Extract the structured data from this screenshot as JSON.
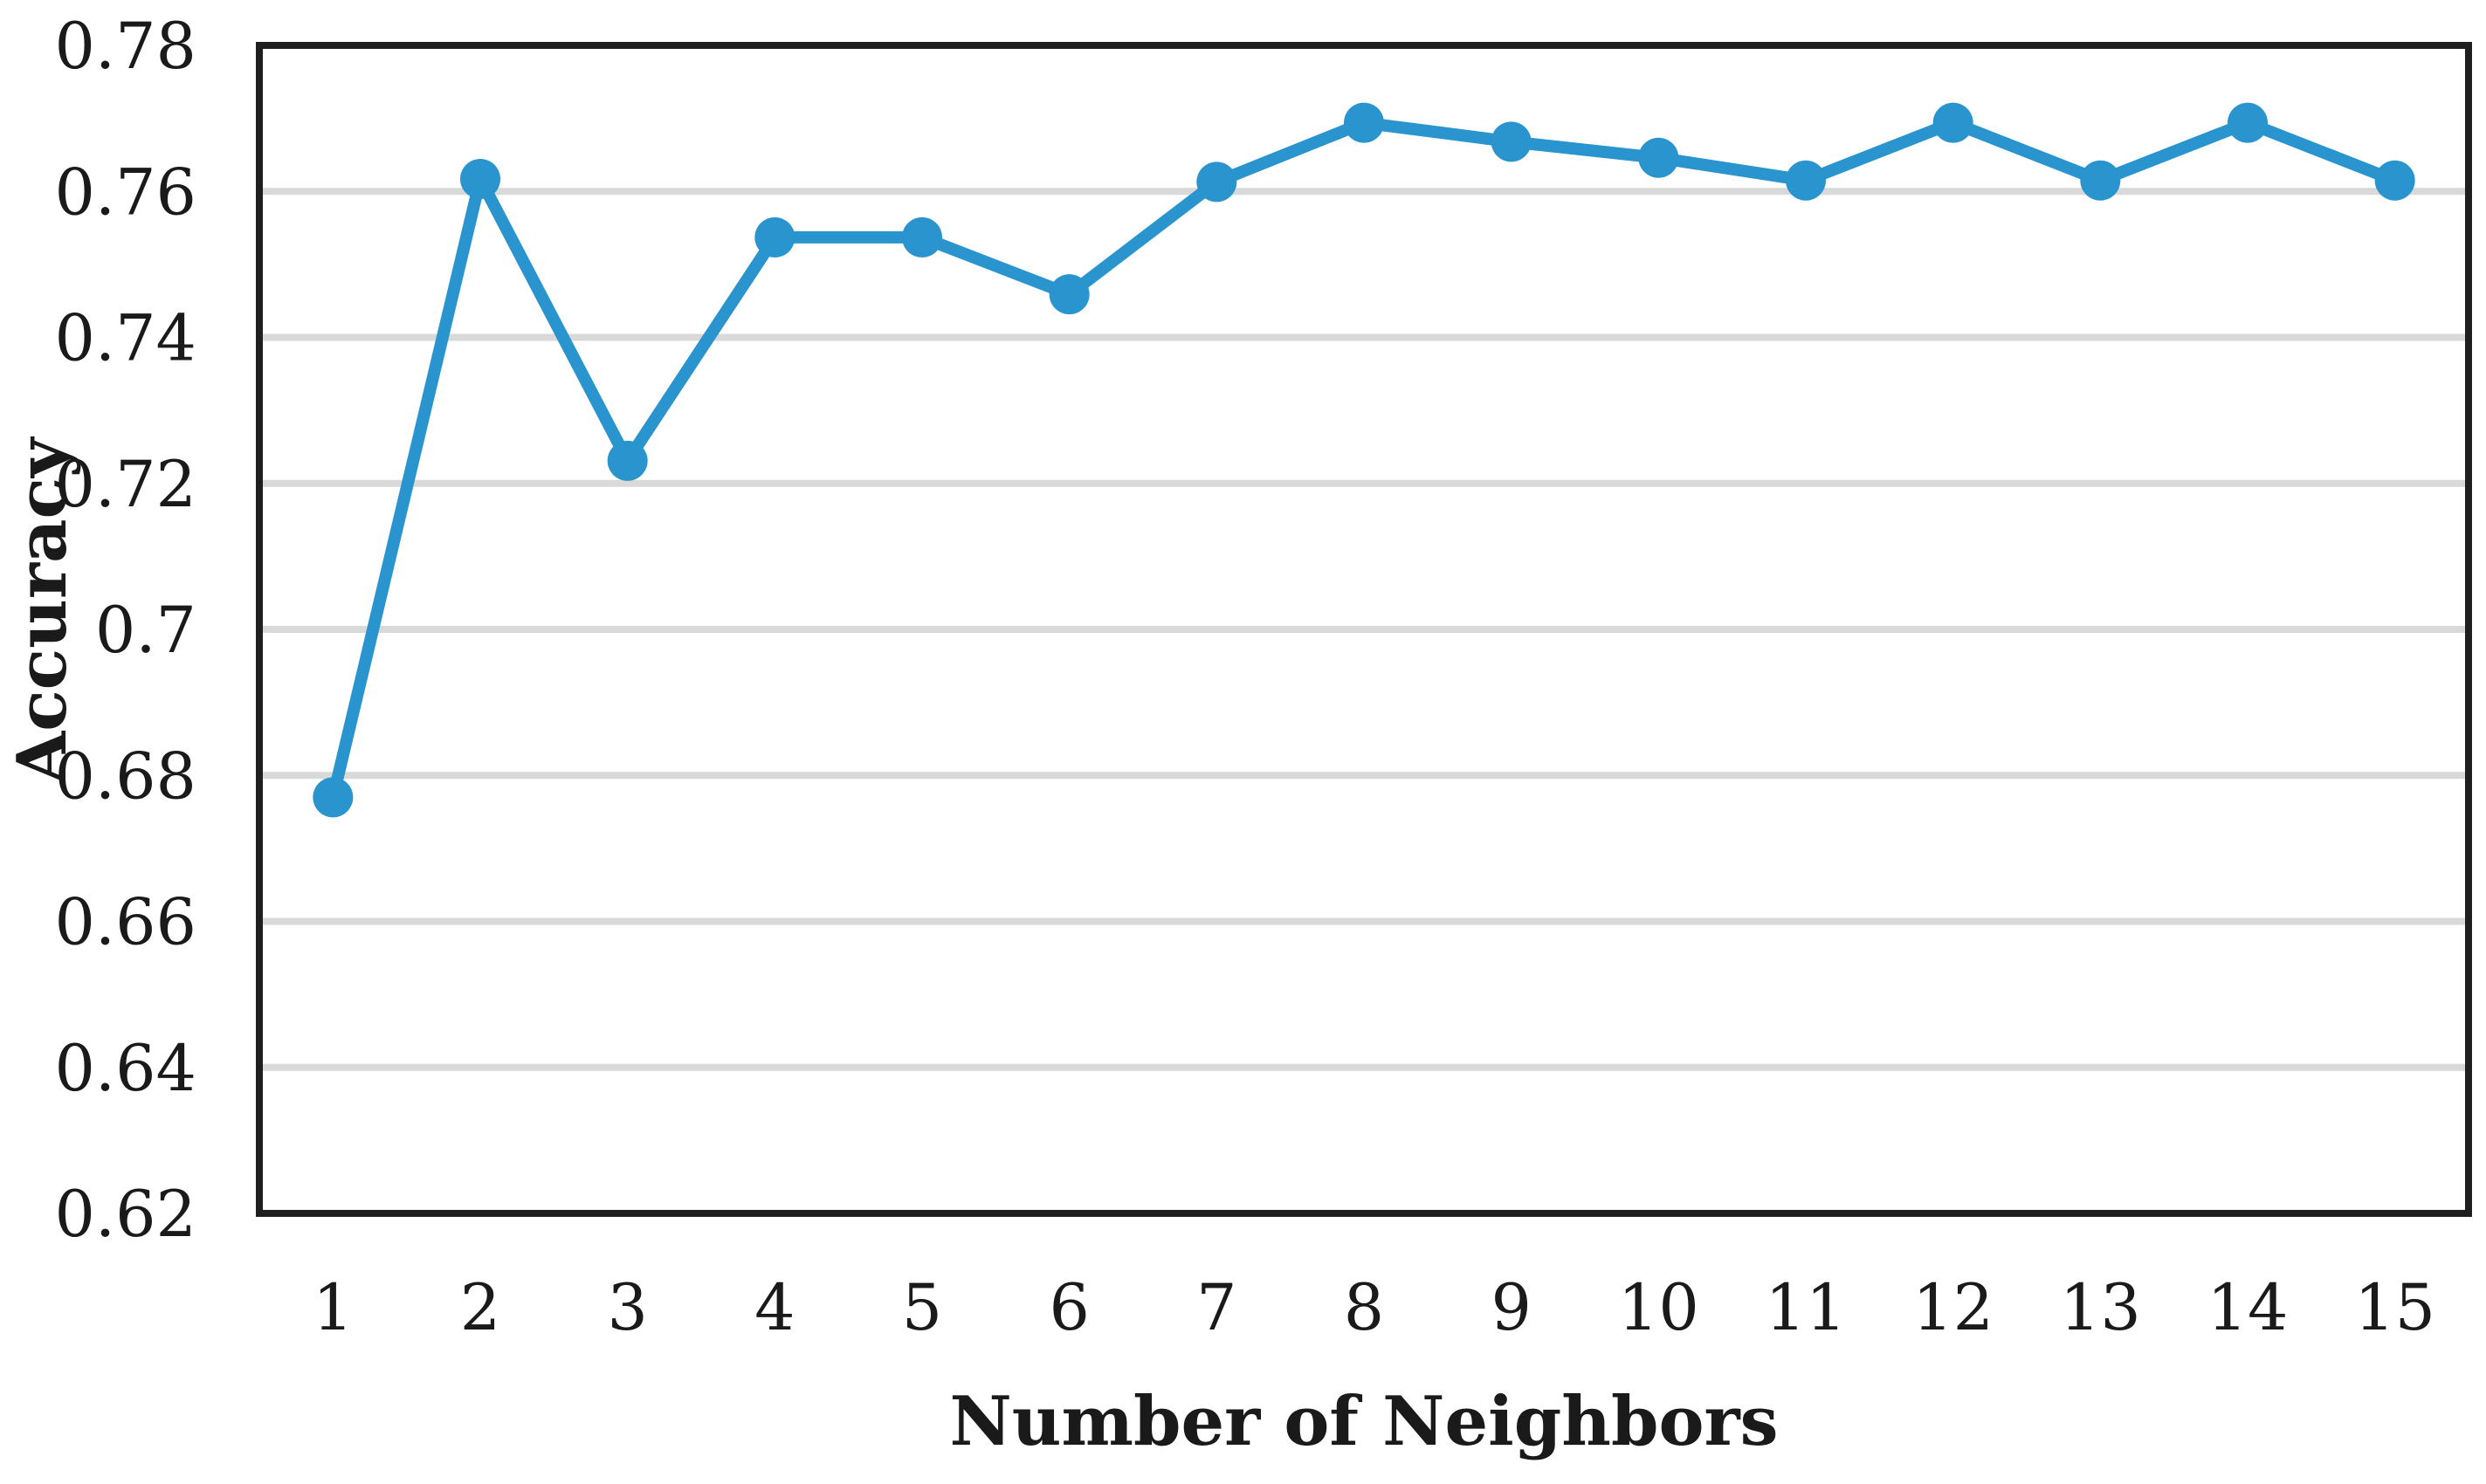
{
  "page": {
    "background": "#FFFFFF"
  },
  "chart_data": {
    "type": "line",
    "title": "",
    "xlabel": "Number of Neighbors",
    "ylabel": "Accuracy",
    "categories": [
      1,
      2,
      3,
      4,
      5,
      6,
      7,
      8,
      9,
      10,
      11,
      12,
      13,
      14,
      15
    ],
    "x_tick_labels": [
      "1",
      "2",
      "3",
      "4",
      "5",
      "6",
      "7",
      "8",
      "9",
      "10",
      "11",
      "12",
      "13",
      "14",
      "15"
    ],
    "series": [
      {
        "name": "Accuracy",
        "values": [
          0.677,
          0.7617,
          0.7231,
          0.7537,
          0.7537,
          0.7459,
          0.7613,
          0.7694,
          0.7668,
          0.7646,
          0.7615,
          0.7694,
          0.7615,
          0.7694,
          0.7615
        ]
      }
    ],
    "ylim": [
      0.62,
      0.78
    ],
    "y_ticks": [
      0.78,
      0.76,
      0.74,
      0.72,
      0.7,
      0.68,
      0.66,
      0.64,
      0.62
    ],
    "y_tick_labels": [
      "0.78",
      "0.76",
      "0.74",
      "0.72",
      "0.7",
      "0.68",
      "0.66",
      "0.64",
      "0.62"
    ],
    "grid": "horizontal-only",
    "legend_position": "none",
    "marker_style": "circle",
    "colors": {
      "line": "#2994CE",
      "marker": "#2994CE",
      "gridline": "#D9D9D9",
      "frame": "#1F1F1F",
      "text": "#1A1A1A",
      "background": "#FFFFFF"
    }
  }
}
